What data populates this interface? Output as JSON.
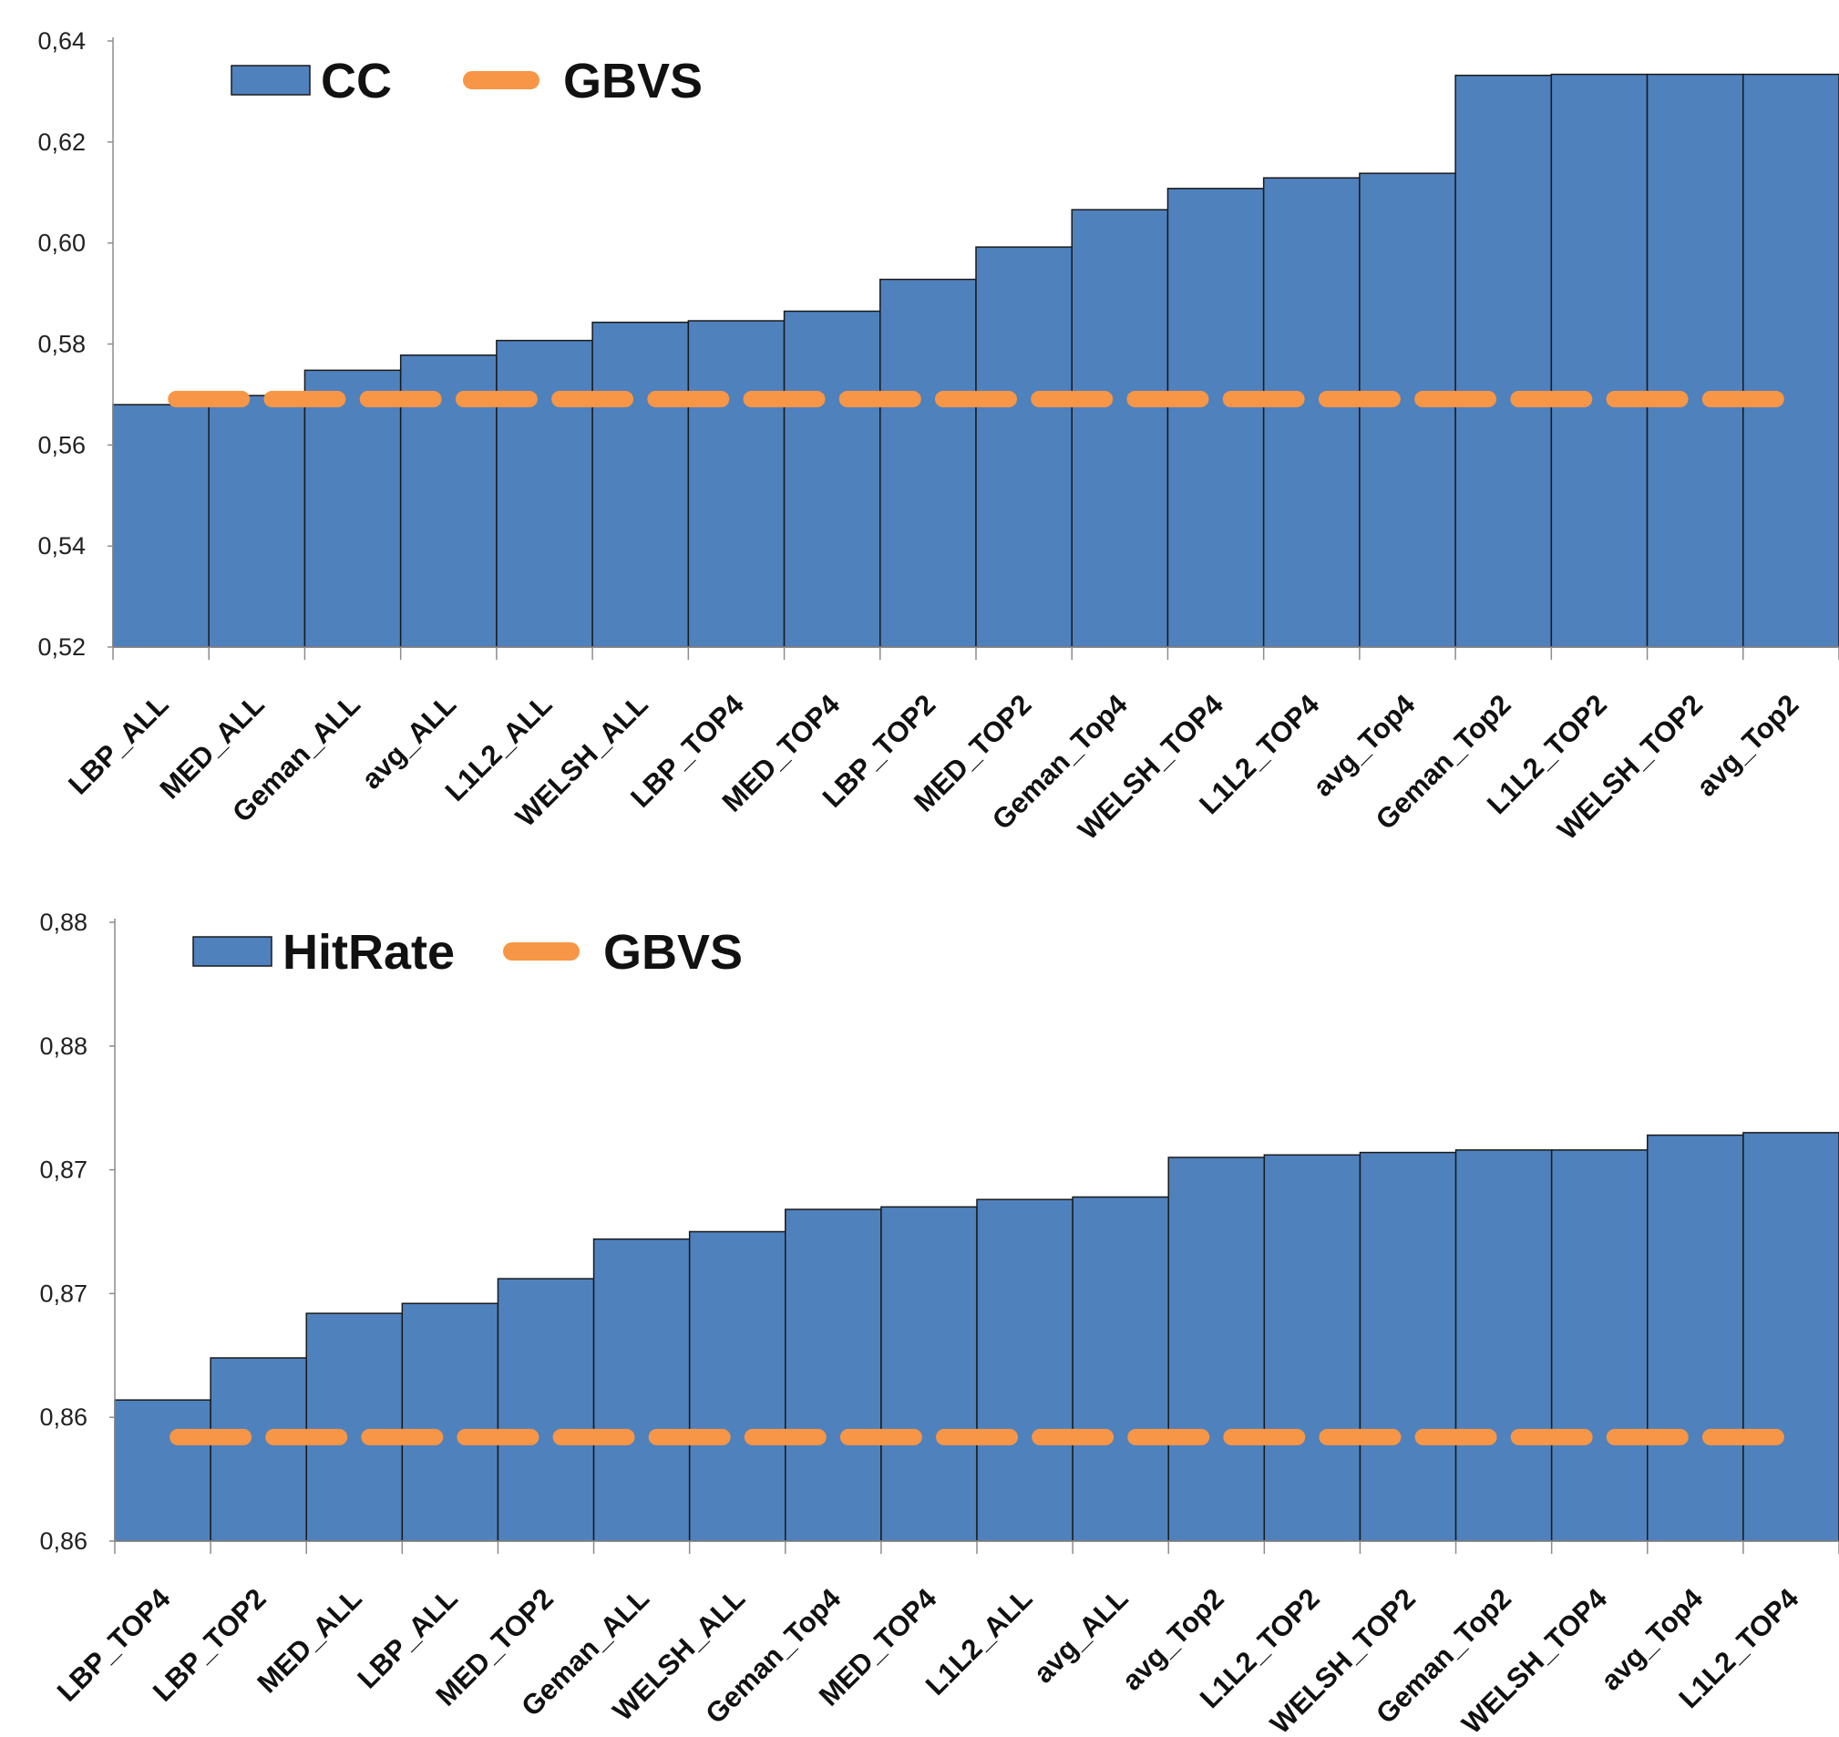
{
  "colors": {
    "bar": "#4F81BD",
    "bar_edge": "#1a1a1a",
    "gbvs": "#F79646",
    "axis": "#8c8c8c"
  },
  "chart_data": [
    {
      "type": "bar",
      "title": "",
      "xlabel": "",
      "ylabel": "",
      "ylim": [
        0.52,
        0.64
      ],
      "yticks": [
        0.52,
        0.54,
        0.56,
        0.58,
        0.6,
        0.62,
        0.64
      ],
      "ytick_labels": [
        "0,52",
        "0,54",
        "0,56",
        "0,58",
        "0,60",
        "0,62",
        "0,64"
      ],
      "grid": false,
      "legend_position": "top-left",
      "categories": [
        "LBP_ALL",
        "MED_ALL",
        "Geman_ALL",
        "avg_ALL",
        "L1L2_ALL",
        "WELSH_ALL",
        "LBP_TOP4",
        "MED_TOP4",
        "LBP_TOP2",
        "MED_TOP2",
        "Geman_Top4",
        "WELSH_TOP4",
        "L1L2_TOP4",
        "avg_Top4",
        "Geman_Top2",
        "L1L2_TOP2",
        "WELSH_TOP2",
        "avg_Top2"
      ],
      "series": [
        {
          "name": "CC",
          "kind": "bar",
          "values": [
            0.568,
            0.5698,
            0.5748,
            0.5778,
            0.5807,
            0.5843,
            0.5846,
            0.5865,
            0.5928,
            0.5992,
            0.6066,
            0.6108,
            0.6129,
            0.6138,
            0.6332,
            0.6334,
            0.6334,
            0.6334
          ]
        },
        {
          "name": "GBVS",
          "kind": "dashed-line",
          "value": 0.5691
        }
      ]
    },
    {
      "type": "bar",
      "title": "",
      "xlabel": "",
      "ylabel": "",
      "ylim": [
        0.86,
        0.885
      ],
      "yticks": [
        0.86,
        0.865,
        0.87,
        0.875,
        0.88,
        0.885
      ],
      "ytick_labels": [
        "0,86",
        "0,86",
        "0,87",
        "0,87",
        "0,88",
        "0,88"
      ],
      "grid": false,
      "legend_position": "top-left",
      "categories": [
        "LBP_TOP4",
        "LBP_TOP2",
        "MED_ALL",
        "LBP_ALL",
        "MED_TOP2",
        "Geman_ALL",
        "WELSH_ALL",
        "Geman_Top4",
        "MED_TOP4",
        "L1L2_ALL",
        "avg_ALL",
        "avg_Top2",
        "L1L2_TOP2",
        "WELSH_TOP2",
        "Geman_Top2",
        "WELSH_TOP4",
        "avg_Top4",
        "L1L2_TOP4"
      ],
      "series": [
        {
          "name": "HitRate",
          "kind": "bar",
          "values": [
            0.8657,
            0.8674,
            0.8692,
            0.8696,
            0.8706,
            0.8722,
            0.8725,
            0.8734,
            0.8735,
            0.8738,
            0.8739,
            0.8755,
            0.8756,
            0.8757,
            0.8758,
            0.8758,
            0.8764,
            0.8765
          ]
        },
        {
          "name": "GBVS",
          "kind": "dashed-line",
          "value": 0.8642
        }
      ]
    }
  ]
}
